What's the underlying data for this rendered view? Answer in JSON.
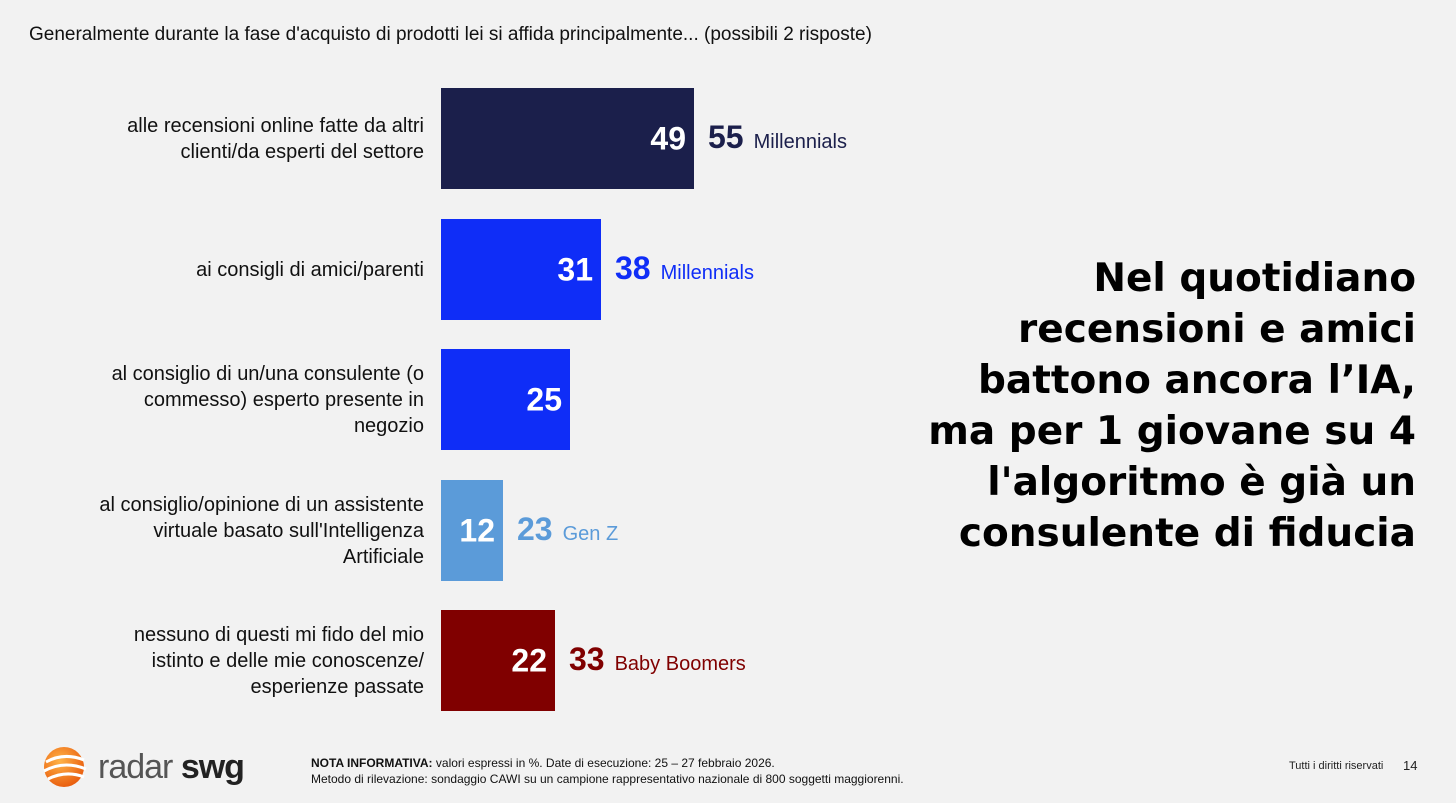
{
  "question": "Generalmente durante la fase d'acquisto di prodotti lei si affida principalmente... (possibili 2 risposte)",
  "chart_data": {
    "type": "bar",
    "orientation": "horizontal",
    "title": "Generalmente durante la fase d'acquisto di prodotti lei si affida principalmente... (possibili 2 risposte)",
    "unit": "%",
    "xlim": [
      0,
      100
    ],
    "categories": [
      [
        "alle recensioni online fatte da altri",
        "clienti/da esperti del settore"
      ],
      [
        "ai consigli di amici/parenti"
      ],
      [
        "al consiglio di un/una consulente (o",
        "commesso) esperto presente in",
        "negozio"
      ],
      [
        "al consiglio/opinione di un assistente",
        "virtuale basato sull'Intelligenza",
        "Artificiale"
      ],
      [
        "nessuno di questi mi fido del mio",
        "istinto e delle mie conoscenze/",
        "esperienze passate"
      ]
    ],
    "values": [
      49,
      31,
      25,
      12,
      22
    ],
    "colors": [
      "#1b1f4b",
      "#0f2df7",
      "#0f2df7",
      "#5b9bd9",
      "#800000"
    ],
    "sub_values": [
      {
        "value": 55,
        "label": "Millennials"
      },
      {
        "value": 38,
        "label": "Millennials"
      },
      null,
      {
        "value": 23,
        "label": "Gen Z"
      },
      {
        "value": 33,
        "label": "Baby Boomers"
      }
    ]
  },
  "headline": {
    "lines": [
      "Nel quotidiano",
      "recensioni e amici",
      "battono ancora l’IA,",
      "ma per 1 giovane su 4",
      "l'algoritmo è già un",
      "consulente di fiducia"
    ]
  },
  "footer": {
    "logo_part1": "radar",
    "logo_part2": "swg",
    "note_bold": "NOTA INFORMATIVA:",
    "note_line1": "valori espressi in %. Date di esecuzione: 25 – 27 febbraio 2026.",
    "note_line2": "Metodo di rilevazione: sondaggio CAWI su un campione rappresentativo nazionale di 800 soggetti maggiorenni.",
    "rights": "Tutti i diritti riservati",
    "page_number": "14"
  }
}
